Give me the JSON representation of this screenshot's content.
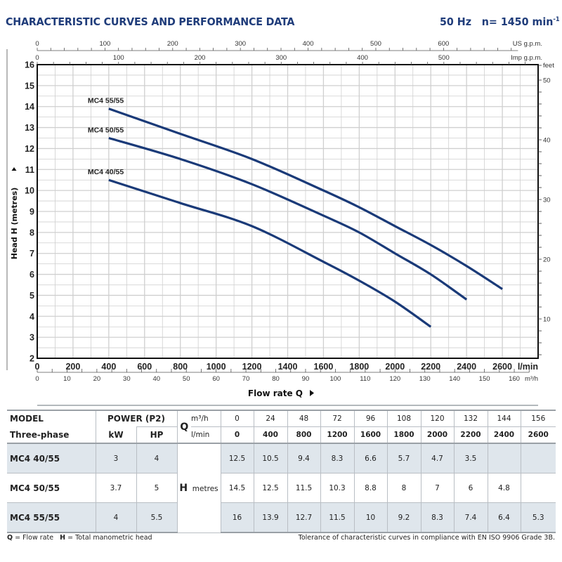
{
  "header": {
    "title": "CHARACTERISTIC CURVES AND PERFORMANCE DATA",
    "frequency": "50 Hz",
    "speed_prefix": "n= 1450 min",
    "speed_superscript": "-1"
  },
  "colors": {
    "title": "#1f3c7a",
    "curve": "#1a3a78",
    "grid": "#cfcfcf",
    "table_shade": "#dfe6ec"
  },
  "chart_data": {
    "type": "line",
    "title": "CHARACTERISTIC CURVES AND PERFORMANCE DATA",
    "xlabel": "Flow rate Q",
    "ylabel": "Head H (metres)",
    "xlim": [
      0,
      2800
    ],
    "ylim": [
      2,
      16
    ],
    "grid": true,
    "x_unit_label": "l/min",
    "x_ticks": [
      0,
      200,
      400,
      600,
      800,
      1000,
      1200,
      1400,
      1600,
      1800,
      2000,
      2200,
      2400,
      2600
    ],
    "y_ticks": [
      2,
      3,
      4,
      5,
      6,
      7,
      8,
      9,
      10,
      11,
      12,
      13,
      14,
      15,
      16
    ],
    "secondary_axes": {
      "us_gpm": {
        "label": "US g.p.m.",
        "ticks": [
          0,
          100,
          200,
          300,
          400,
          500,
          600
        ]
      },
      "imp_gpm": {
        "label": "Imp g.p.m.",
        "ticks": [
          0,
          100,
          200,
          300,
          400,
          500
        ]
      },
      "m3h": {
        "label": "m³/h",
        "ticks": [
          0,
          10,
          20,
          30,
          40,
          50,
          60,
          70,
          80,
          90,
          100,
          110,
          120,
          130,
          140,
          150,
          160
        ]
      },
      "feet": {
        "label": "feet",
        "ticks": [
          10,
          20,
          30,
          40,
          50
        ]
      }
    },
    "series": [
      {
        "name": "MC4 55/55",
        "x": [
          400,
          800,
          1200,
          1600,
          1800,
          2000,
          2200,
          2400,
          2600
        ],
        "y": [
          13.9,
          12.7,
          11.5,
          10,
          9.2,
          8.3,
          7.4,
          6.4,
          5.3
        ]
      },
      {
        "name": "MC4 50/55",
        "x": [
          400,
          800,
          1200,
          1600,
          1800,
          2000,
          2200,
          2400
        ],
        "y": [
          12.5,
          11.5,
          10.3,
          8.8,
          8,
          7,
          6,
          4.8
        ]
      },
      {
        "name": "MC4 40/55",
        "x": [
          400,
          800,
          1200,
          1600,
          1800,
          2000,
          2200
        ],
        "y": [
          10.5,
          9.4,
          8.3,
          6.6,
          5.7,
          4.7,
          3.5
        ]
      }
    ]
  },
  "table": {
    "model_header": "MODEL",
    "model_sub": "Three-phase",
    "power_header": "POWER (P",
    "power_sub2": "2",
    "power_close": ")",
    "kw": "kW",
    "hp": "HP",
    "q_letter": "Q",
    "q_unit_m3h": "m³/h",
    "q_unit_lmin": "l/min",
    "h_letter": "H",
    "h_unit": "metres",
    "m3h": [
      "0",
      "24",
      "48",
      "72",
      "96",
      "108",
      "120",
      "132",
      "144",
      "156"
    ],
    "lmin": [
      "0",
      "400",
      "800",
      "1200",
      "1600",
      "1800",
      "2000",
      "2200",
      "2400",
      "2600"
    ],
    "rows": [
      {
        "model": "MC4 40/55",
        "kw": "3",
        "hp": "4",
        "h": [
          "12.5",
          "10.5",
          "9.4",
          "8.3",
          "6.6",
          "5.7",
          "4.7",
          "3.5",
          "",
          ""
        ]
      },
      {
        "model": "MC4 50/55",
        "kw": "3.7",
        "hp": "5",
        "h": [
          "14.5",
          "12.5",
          "11.5",
          "10.3",
          "8.8",
          "8",
          "7",
          "6",
          "4.8",
          ""
        ]
      },
      {
        "model": "MC4 55/55",
        "kw": "4",
        "hp": "5.5",
        "h": [
          "16",
          "13.9",
          "12.7",
          "11.5",
          "10",
          "9.2",
          "8.3",
          "7.4",
          "6.4",
          "5.3"
        ]
      }
    ]
  },
  "footer": {
    "q_key": "Q",
    "q_def": " = Flow rate",
    "h_key": "H",
    "h_def": " = Total manometric head",
    "tolerance": "Tolerance of characteristic curves in compliance with EN ISO 9906 Grade 3B."
  }
}
